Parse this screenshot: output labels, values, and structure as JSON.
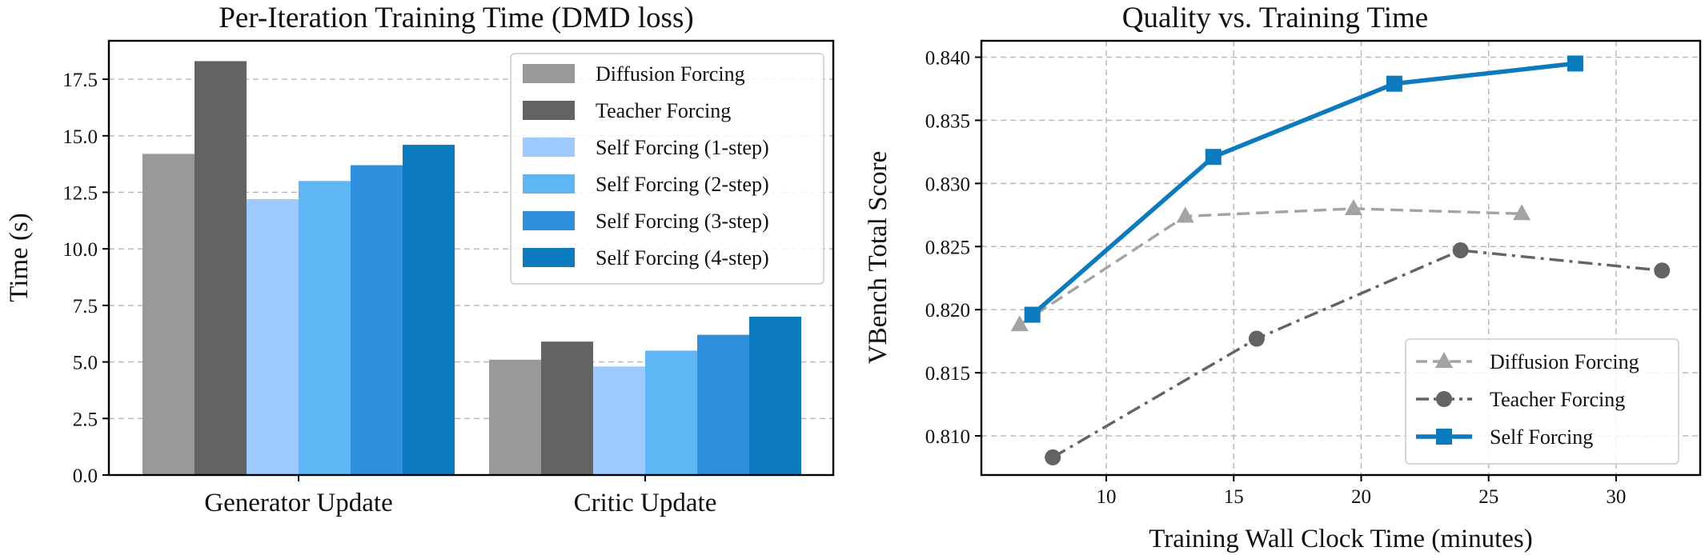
{
  "chart_data": [
    {
      "type": "bar",
      "title": "Per-Iteration Training Time (DMD loss)",
      "xlabel": "",
      "ylabel": "Time (s)",
      "categories": [
        "Generator Update",
        "Critic Update"
      ],
      "ylim": [
        0,
        19.2
      ],
      "yticks": [
        "0.0",
        "2.5",
        "5.0",
        "7.5",
        "10.0",
        "12.5",
        "15.0",
        "17.5"
      ],
      "grid": true,
      "legend_position": "top-right",
      "series": [
        {
          "name": "Diffusion Forcing",
          "color": "#999999",
          "values": [
            14.2,
            5.1
          ]
        },
        {
          "name": "Teacher Forcing",
          "color": "#636363",
          "values": [
            18.3,
            5.9
          ]
        },
        {
          "name": "Self Forcing (1-step)",
          "color": "#9ecbff",
          "values": [
            12.2,
            4.8
          ]
        },
        {
          "name": "Self Forcing (2-step)",
          "color": "#5eb6f5",
          "values": [
            13.0,
            5.5
          ]
        },
        {
          "name": "Self Forcing (3-step)",
          "color": "#2f8fdd",
          "values": [
            13.7,
            6.2
          ]
        },
        {
          "name": "Self Forcing (4-step)",
          "color": "#0b7abf",
          "values": [
            14.6,
            7.0
          ]
        }
      ]
    },
    {
      "type": "line",
      "title": "Quality vs. Training Time",
      "xlabel": "Training Wall Clock Time (minutes)",
      "ylabel": "VBench Total Score",
      "xlim": [
        5.1,
        33.3
      ],
      "ylim": [
        0.8069,
        0.8413
      ],
      "xticks": [
        "10",
        "15",
        "20",
        "25",
        "30"
      ],
      "yticks": [
        "0.810",
        "0.815",
        "0.820",
        "0.825",
        "0.830",
        "0.835",
        "0.840"
      ],
      "grid": true,
      "legend_position": "bottom-right",
      "series": [
        {
          "name": "Diffusion Forcing",
          "color": "#a3a3a3",
          "line": "dashed",
          "marker": "triangle",
          "x": [
            6.6,
            13.1,
            19.7,
            26.3
          ],
          "y": [
            0.8188,
            0.8274,
            0.828,
            0.8276
          ]
        },
        {
          "name": "Teacher Forcing",
          "color": "#636363",
          "line": "dashdot",
          "marker": "circle",
          "x": [
            7.9,
            15.9,
            23.9,
            31.8
          ],
          "y": [
            0.8083,
            0.8177,
            0.8247,
            0.8231
          ]
        },
        {
          "name": "Self Forcing",
          "color": "#0b7abf",
          "line": "solid",
          "marker": "square",
          "x": [
            7.1,
            14.2,
            21.3,
            28.4
          ],
          "y": [
            0.8196,
            0.8321,
            0.8379,
            0.8395
          ]
        }
      ]
    }
  ]
}
